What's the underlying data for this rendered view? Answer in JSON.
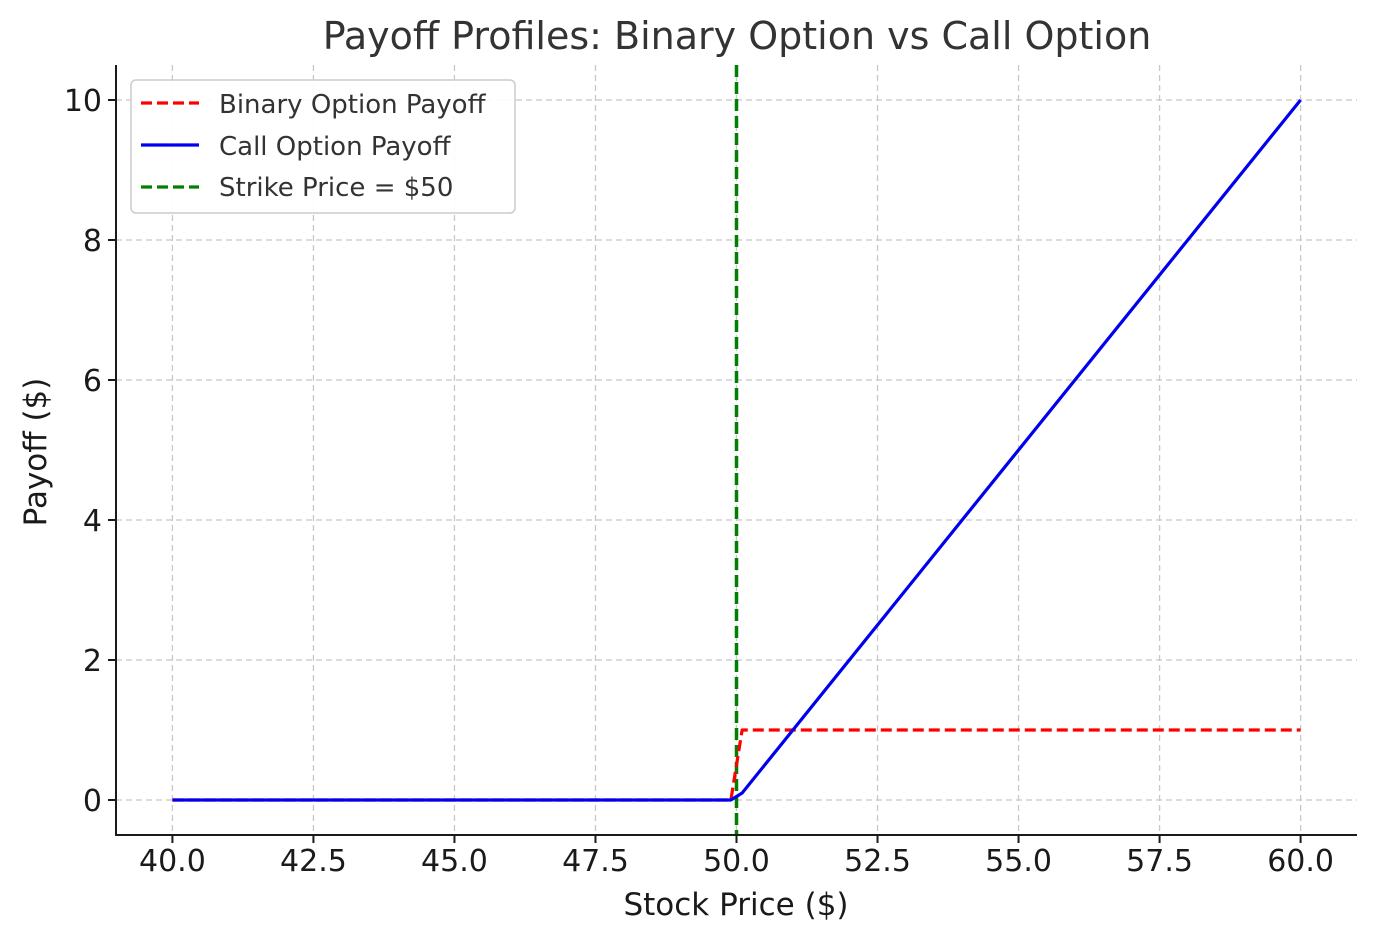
{
  "chart_data": {
    "type": "line",
    "title": "Payoff Profiles: Binary Option vs Call Option",
    "xlabel": "Stock Price ($)",
    "ylabel": "Payoff ($)",
    "xlim": [
      39.0,
      61.0
    ],
    "ylim": [
      -0.5,
      10.5
    ],
    "xticks": [
      40.0,
      42.5,
      45.0,
      47.5,
      50.0,
      52.5,
      55.0,
      57.5,
      60.0
    ],
    "xtick_labels": [
      "40.0",
      "42.5",
      "45.0",
      "47.5",
      "50.0",
      "52.5",
      "55.0",
      "57.5",
      "60.0"
    ],
    "yticks": [
      0,
      2,
      4,
      6,
      8,
      10
    ],
    "ytick_labels": [
      "0",
      "2",
      "4",
      "6",
      "8",
      "10"
    ],
    "grid": true,
    "legend_position": "top-left",
    "series": [
      {
        "name": "Binary Option Payoff",
        "color": "#ff0000",
        "style": "dashed",
        "x": [
          40.0,
          49.9,
          50.1,
          60.0
        ],
        "y": [
          0,
          0,
          1,
          1
        ]
      },
      {
        "name": "Call Option Payoff",
        "color": "#0000ee",
        "style": "solid",
        "x": [
          40.0,
          49.9,
          50.1,
          60.0
        ],
        "y": [
          0,
          0,
          0.1,
          10
        ]
      }
    ],
    "vlines": [
      {
        "name": "Strike Price = $50",
        "x": 50.0,
        "color": "#008000",
        "style": "dashed"
      }
    ]
  }
}
